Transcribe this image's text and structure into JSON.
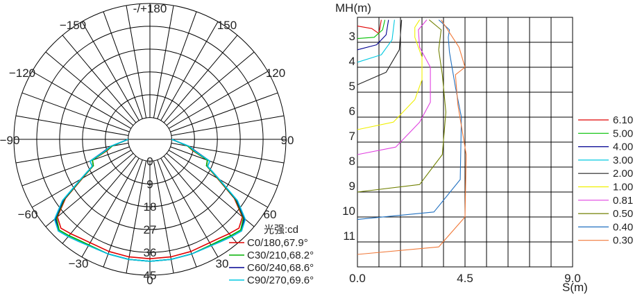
{
  "chart_data": [
    {
      "type": "polar",
      "angle_labels": [
        "-/+180",
        "−150",
        "150",
        "−120",
        "120",
        "−90",
        "90",
        "−60",
        "60",
        "−30",
        "30",
        "0"
      ],
      "radial_labels": [
        "0",
        "9",
        "18",
        "27",
        "36",
        "45"
      ],
      "rlim": [
        0,
        45
      ],
      "grid": true,
      "legend_title": "光强:cd",
      "legend_position": "bottom-right",
      "series": [
        {
          "name": "C0/180,67.9°",
          "color": "#e00000",
          "angles": [
            0,
            10,
            20,
            30,
            35,
            40,
            45,
            50,
            55,
            60,
            65,
            70,
            75,
            80,
            90
          ],
          "values": [
            38.5,
            38.5,
            38.5,
            38.5,
            39.0,
            40.0,
            41.0,
            39.0,
            32.0,
            22.0,
            16.0,
            15.5,
            9.0,
            6.5,
            0
          ]
        },
        {
          "name": "C30/210,68.2°",
          "color": "#00b000",
          "angles": [
            0,
            10,
            20,
            30,
            35,
            40,
            45,
            50,
            55,
            60,
            65,
            70,
            75,
            80,
            90
          ],
          "values": [
            39.5,
            39.5,
            39.5,
            39.5,
            40.0,
            41.0,
            42.0,
            39.5,
            32.5,
            22.5,
            16.0,
            15.5,
            9.5,
            6.5,
            0
          ]
        },
        {
          "name": "C60/240,68.6°",
          "color": "#000090",
          "angles": [
            0,
            10,
            20,
            30,
            35,
            40,
            45,
            50,
            55,
            60,
            65,
            70,
            75,
            80,
            90
          ],
          "values": [
            39.5,
            39.5,
            39.5,
            39.8,
            40.5,
            41.5,
            42.5,
            40.0,
            33.0,
            23.0,
            16.5,
            16.5,
            10.5,
            7.0,
            0
          ]
        },
        {
          "name": "C90/270,69.6°",
          "color": "#00c8e0",
          "angles": [
            0,
            10,
            20,
            30,
            35,
            40,
            45,
            50,
            55,
            60,
            65,
            70,
            75,
            80,
            90
          ],
          "values": [
            39.5,
            39.5,
            39.5,
            39.8,
            40.5,
            41.5,
            42.5,
            40.5,
            33.5,
            23.0,
            16.5,
            16.5,
            10.0,
            7.0,
            0
          ]
        }
      ]
    },
    {
      "type": "line",
      "ylabel": "MH(m)",
      "xlabel": "S(m)",
      "xlim": [
        0,
        9.0
      ],
      "ylim": [
        2,
        12
      ],
      "y_inverted": true,
      "x_ticks": [
        "0.0",
        "4.5",
        "9.0"
      ],
      "y_ticks": [
        "3",
        "4",
        "5",
        "6",
        "7",
        "8",
        "9",
        "10",
        "11"
      ],
      "grid": true,
      "legend_position": "right",
      "series": [
        {
          "name": "6.10",
          "color": "#e00000",
          "x": [
            0,
            0.6,
            0.9,
            1.0
          ],
          "y": [
            2.35,
            2.45,
            2.65,
            2.1
          ]
        },
        {
          "name": "5.00",
          "color": "#00c000",
          "x": [
            0,
            0.7,
            1.05,
            1.15
          ],
          "y": [
            2.85,
            2.8,
            2.5,
            2.1
          ]
        },
        {
          "name": "4.00",
          "color": "#000090",
          "x": [
            0,
            0.8,
            1.2,
            1.3
          ],
          "y": [
            3.3,
            3.1,
            2.7,
            2.1
          ]
        },
        {
          "name": "3.00",
          "color": "#00c8e0",
          "x": [
            0,
            1.0,
            1.45,
            1.55
          ],
          "y": [
            3.8,
            3.5,
            2.9,
            2.1
          ]
        },
        {
          "name": "2.00",
          "color": "#222222",
          "x": [
            0,
            1.2,
            1.75,
            1.85
          ],
          "y": [
            4.7,
            4.2,
            3.3,
            2.1
          ]
        },
        {
          "name": "1.00",
          "color": "#f0f000",
          "x": [
            0,
            1.5,
            2.4,
            2.7,
            2.7,
            2.4,
            2.4,
            2.6
          ],
          "y": [
            6.5,
            6.2,
            5.3,
            4.5,
            3.6,
            2.8,
            2.4,
            2.1
          ]
        },
        {
          "name": "0.81",
          "color": "#e040e0",
          "x": [
            0,
            1.6,
            2.6,
            3.05,
            3.05,
            2.6,
            2.55,
            2.9
          ],
          "y": [
            7.5,
            7.2,
            6.2,
            5.4,
            4.0,
            3.2,
            2.5,
            2.1
          ]
        },
        {
          "name": "0.50",
          "color": "#708000",
          "x": [
            0,
            2.6,
            3.55,
            3.7,
            3.55,
            3.4,
            3.5,
            3.0
          ],
          "y": [
            9.0,
            8.7,
            7.5,
            5.8,
            4.3,
            3.3,
            2.5,
            2.1
          ]
        },
        {
          "name": "0.40",
          "color": "#2070c0",
          "x": [
            0,
            3.2,
            4.3,
            4.35,
            4.1,
            3.85,
            3.8,
            3.85,
            3.4
          ],
          "y": [
            10.1,
            9.8,
            8.5,
            6.0,
            4.8,
            3.4,
            2.8,
            2.5,
            2.1
          ]
        },
        {
          "name": "0.30",
          "color": "#f07838",
          "x": [
            0,
            3.4,
            4.5,
            4.55,
            4.2,
            4.1,
            4.5,
            4.25,
            3.5
          ],
          "y": [
            11.5,
            11.2,
            10.0,
            7.5,
            5.5,
            4.3,
            4.0,
            3.2,
            2.1
          ]
        }
      ]
    }
  ]
}
